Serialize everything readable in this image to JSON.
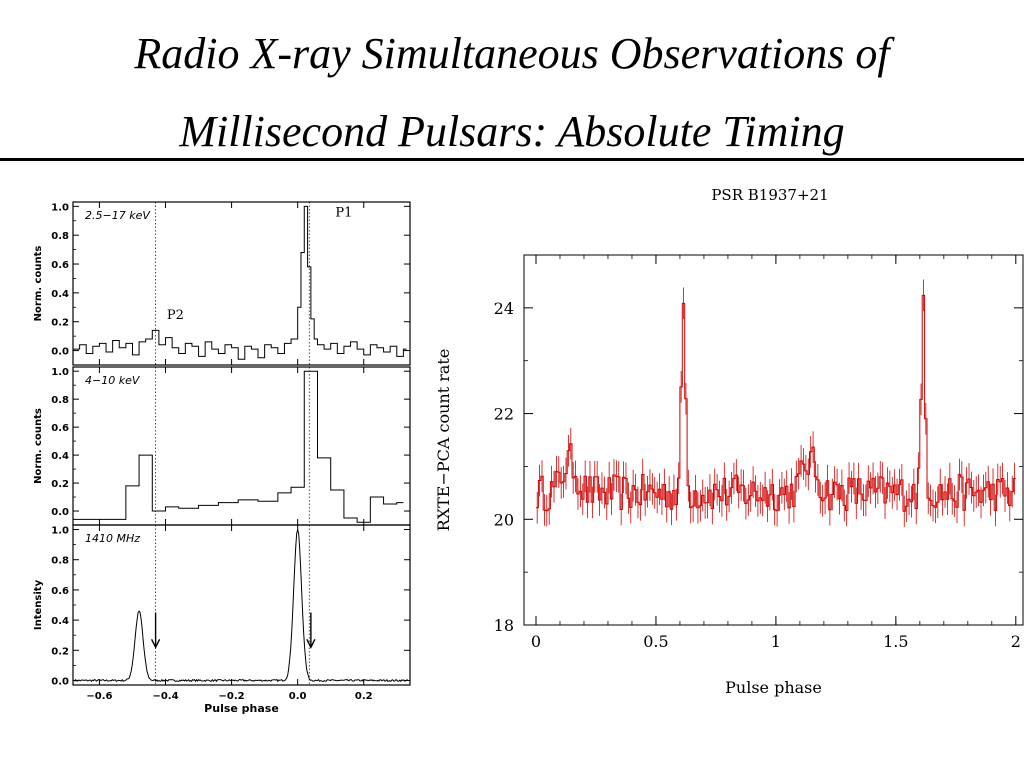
{
  "title": {
    "line1": "Radio X-ray Simultaneous Observations of",
    "line2": "Millisecond Pulsars: Absolute Timing"
  },
  "colors": {
    "right_trace": "#d00000",
    "ink": "#000000"
  },
  "chart_data": [
    {
      "type": "line",
      "description_panels": "three stacked step/line profiles sharing the x axis",
      "xlabel": "Pulse phase",
      "xlim": [
        -0.68,
        0.34
      ],
      "xticks": [
        -0.6,
        -0.4,
        -0.2,
        0.0,
        0.2
      ],
      "xtick_labels": [
        "−0.6",
        "−0.4",
        "−0.2",
        "0.0",
        "0.2"
      ],
      "reference_lines_x": [
        -0.43,
        0.035
      ],
      "panels": [
        {
          "label": "2.5−17 keV",
          "ylabel": "Norm. counts",
          "ylim": [
            -0.1,
            1.03
          ],
          "yticks": [
            0.0,
            0.2,
            0.4,
            0.6,
            0.8,
            1.0
          ],
          "ytick_labels": [
            "0.0",
            "0.2",
            "0.4",
            "0.6",
            "0.8",
            "1.0"
          ],
          "annotations": [
            {
              "text": "P2",
              "x": -0.37,
              "y": 0.22
            },
            {
              "text": "P1",
              "x": 0.14,
              "y": 0.93
            }
          ],
          "step": true,
          "x": [
            -0.68,
            -0.66,
            -0.64,
            -0.62,
            -0.6,
            -0.58,
            -0.56,
            -0.54,
            -0.52,
            -0.5,
            -0.48,
            -0.46,
            -0.44,
            -0.42,
            -0.4,
            -0.38,
            -0.36,
            -0.34,
            -0.32,
            -0.3,
            -0.28,
            -0.26,
            -0.24,
            -0.22,
            -0.2,
            -0.18,
            -0.16,
            -0.14,
            -0.12,
            -0.1,
            -0.08,
            -0.06,
            -0.04,
            -0.02,
            0.0,
            0.01,
            0.02,
            0.03,
            0.04,
            0.05,
            0.06,
            0.08,
            0.1,
            0.12,
            0.14,
            0.16,
            0.18,
            0.2,
            0.22,
            0.24,
            0.26,
            0.28,
            0.3,
            0.32
          ],
          "values": [
            0.01,
            0.04,
            -0.02,
            0.03,
            0.05,
            -0.01,
            0.07,
            0.02,
            0.05,
            -0.03,
            0.06,
            0.08,
            0.14,
            0.04,
            0.09,
            0.02,
            -0.02,
            0.05,
            0.03,
            -0.04,
            0.06,
            0.01,
            -0.02,
            0.04,
            0.02,
            -0.06,
            0.03,
            0.01,
            -0.05,
            0.04,
            0.02,
            -0.02,
            0.05,
            0.08,
            0.3,
            0.68,
            1.0,
            0.58,
            0.22,
            0.08,
            0.04,
            0.01,
            0.05,
            -0.02,
            0.03,
            0.06,
            0.01,
            -0.03,
            0.04,
            0.02,
            -0.01,
            0.03,
            -0.04,
            0.01
          ]
        },
        {
          "label": "4−10 keV",
          "ylabel": "Norm. counts",
          "ylim": [
            -0.1,
            1.03
          ],
          "yticks": [
            0.0,
            0.2,
            0.4,
            0.6,
            0.8,
            1.0
          ],
          "ytick_labels": [
            "0.0",
            "0.2",
            "0.4",
            "0.6",
            "0.8",
            "1.0"
          ],
          "step": true,
          "x": [
            -0.68,
            -0.52,
            -0.48,
            -0.44,
            -0.4,
            -0.36,
            -0.3,
            -0.24,
            -0.18,
            -0.12,
            -0.06,
            -0.02,
            0.02,
            0.06,
            0.1,
            0.14,
            0.18,
            0.22,
            0.26,
            0.3
          ],
          "values": [
            -0.06,
            0.18,
            0.4,
            0.0,
            0.03,
            0.02,
            0.04,
            0.06,
            0.08,
            0.07,
            0.13,
            0.17,
            1.0,
            0.38,
            0.15,
            -0.05,
            -0.08,
            0.1,
            0.05,
            0.06
          ]
        },
        {
          "label": "1410 MHz",
          "ylabel": "Intensity",
          "ylim": [
            -0.03,
            1.03
          ],
          "yticks": [
            0.0,
            0.2,
            0.4,
            0.6,
            0.8,
            1.0
          ],
          "ytick_labels": [
            "0.0",
            "0.2",
            "0.4",
            "0.6",
            "0.8",
            "1.0"
          ],
          "arrows_x": [
            -0.43,
            0.04
          ],
          "peaks": [
            {
              "center": -0.48,
              "height": 0.46,
              "width": 0.012
            },
            {
              "center": 0.0,
              "height": 1.0,
              "width": 0.012
            }
          ]
        }
      ]
    },
    {
      "type": "line",
      "title": "PSR B1937+21",
      "xlabel": "Pulse phase",
      "ylabel": "RXTE−PCA count rate",
      "xlim": [
        -0.05,
        2.03
      ],
      "ylim": [
        18,
        25
      ],
      "xticks": [
        0,
        0.5,
        1,
        1.5,
        2
      ],
      "xtick_labels": [
        "0",
        "0.5",
        "1",
        "1.5",
        "2"
      ],
      "yticks": [
        18,
        20,
        22,
        24
      ],
      "ytick_labels": [
        "18",
        "20",
        "22",
        "24"
      ],
      "baseline": 20.5,
      "peaks": [
        {
          "center": 0.615,
          "height": 3.7,
          "width": 0.008
        },
        {
          "center": 1.615,
          "height": 3.7,
          "width": 0.008
        },
        {
          "center": 0.14,
          "height": 0.6,
          "width": 0.03
        },
        {
          "center": 1.14,
          "height": 0.6,
          "width": 0.03
        }
      ],
      "n_bins": 200,
      "noise_amplitude": 0.35,
      "error_bar": 0.3
    }
  ]
}
